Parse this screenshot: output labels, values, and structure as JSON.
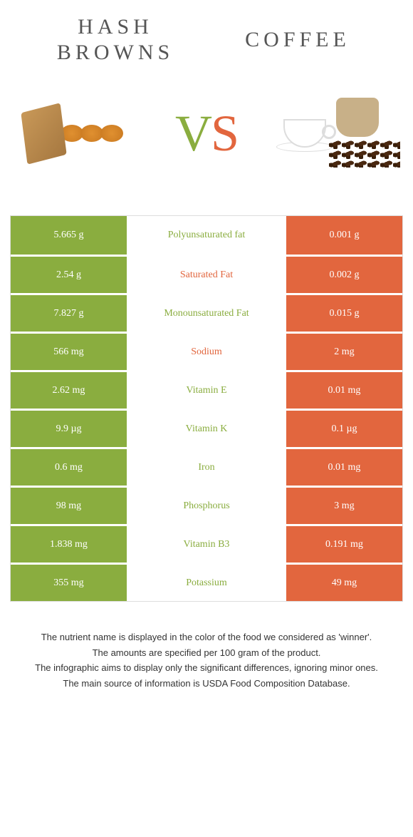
{
  "colors": {
    "green": "#8aad3f",
    "orange": "#e2663e",
    "text_gray": "#555555",
    "white": "#ffffff"
  },
  "header": {
    "left_title": "HASH BROWNS",
    "right_title": "COFFEE",
    "vs_v": "V",
    "vs_s": "S"
  },
  "table": {
    "left_bg": "#8aad3f",
    "right_bg": "#e2663e",
    "rows": [
      {
        "left": "5.665 g",
        "label": "Polyunsaturated fat",
        "right": "0.001 g",
        "winner": "left"
      },
      {
        "left": "2.54 g",
        "label": "Saturated Fat",
        "right": "0.002 g",
        "winner": "right"
      },
      {
        "left": "7.827 g",
        "label": "Monounsaturated Fat",
        "right": "0.015 g",
        "winner": "left"
      },
      {
        "left": "566 mg",
        "label": "Sodium",
        "right": "2 mg",
        "winner": "right"
      },
      {
        "left": "2.62 mg",
        "label": "Vitamin E",
        "right": "0.01 mg",
        "winner": "left"
      },
      {
        "left": "9.9 µg",
        "label": "Vitamin K",
        "right": "0.1 µg",
        "winner": "left"
      },
      {
        "left": "0.6 mg",
        "label": "Iron",
        "right": "0.01 mg",
        "winner": "left"
      },
      {
        "left": "98 mg",
        "label": "Phosphorus",
        "right": "3 mg",
        "winner": "left"
      },
      {
        "left": "1.838 mg",
        "label": "Vitamin B3",
        "right": "0.191 mg",
        "winner": "left"
      },
      {
        "left": "355 mg",
        "label": "Potassium",
        "right": "49 mg",
        "winner": "left"
      }
    ]
  },
  "footer": {
    "lines": [
      "The nutrient name is displayed in the color of the food we considered as 'winner'.",
      "The amounts are specified per 100 gram of the product.",
      "The infographic aims to display only the significant differences, ignoring minor ones.",
      "The main source of information is USDA Food Composition Database."
    ]
  }
}
